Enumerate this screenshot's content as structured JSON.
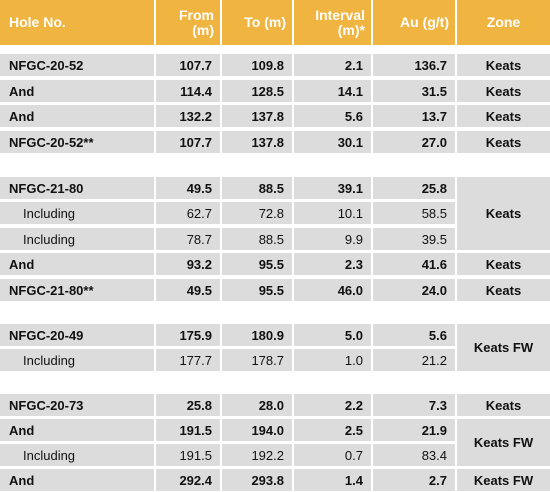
{
  "headers": {
    "hole": "Hole No.",
    "from": "From\n(m)",
    "to": "To (m)",
    "interval": "Interval\n(m)*",
    "au": "Au (g/t)",
    "zone": "Zone"
  },
  "rows": [
    {
      "hole": "NFGC-20-52",
      "from": "107.7",
      "to": "109.8",
      "interval": "2.1",
      "au": "136.7",
      "zone": "Keats"
    },
    {
      "hole": "And",
      "from": "114.4",
      "to": "128.5",
      "interval": "14.1",
      "au": "31.5",
      "zone": "Keats"
    },
    {
      "hole": "And",
      "from": "132.2",
      "to": "137.8",
      "interval": "5.6",
      "au": "13.7",
      "zone": "Keats"
    },
    {
      "hole": "NFGC-20-52**",
      "from": "107.7",
      "to": "137.8",
      "interval": "30.1",
      "au": "27.0",
      "zone": "Keats"
    },
    {
      "hole": "NFGC-21-80",
      "from": "49.5",
      "to": "88.5",
      "interval": "39.1",
      "au": "25.8",
      "zone": ""
    },
    {
      "hole": "Including",
      "from": "62.7",
      "to": "72.8",
      "interval": "10.1",
      "au": "58.5",
      "zone": ""
    },
    {
      "hole": "Including",
      "from": "78.7",
      "to": "88.5",
      "interval": "9.9",
      "au": "39.5",
      "zone": ""
    },
    {
      "hole": "And",
      "from": "93.2",
      "to": "95.5",
      "interval": "2.3",
      "au": "41.6",
      "zone": "Keats"
    },
    {
      "hole": "NFGC-21-80**",
      "from": "49.5",
      "to": "95.5",
      "interval": "46.0",
      "au": "24.0",
      "zone": "Keats"
    },
    {
      "hole": "NFGC-20-49",
      "from": "175.9",
      "to": "180.9",
      "interval": "5.0",
      "au": "5.6",
      "zone": ""
    },
    {
      "hole": "Including",
      "from": "177.7",
      "to": "178.7",
      "interval": "1.0",
      "au": "21.2",
      "zone": ""
    },
    {
      "hole": "NFGC-20-73",
      "from": "25.8",
      "to": "28.0",
      "interval": "2.2",
      "au": "7.3",
      "zone": "Keats"
    },
    {
      "hole": "And",
      "from": "191.5",
      "to": "194.0",
      "interval": "2.5",
      "au": "21.9",
      "zone": ""
    },
    {
      "hole": "Including",
      "from": "191.5",
      "to": "192.2",
      "interval": "0.7",
      "au": "83.4",
      "zone": ""
    },
    {
      "hole": "And",
      "from": "292.4",
      "to": "293.8",
      "interval": "1.4",
      "au": "2.7",
      "zone": "Keats FW"
    }
  ],
  "merged_zones": {
    "group2": "Keats",
    "group3": "Keats FW",
    "group4": "Keats FW"
  }
}
